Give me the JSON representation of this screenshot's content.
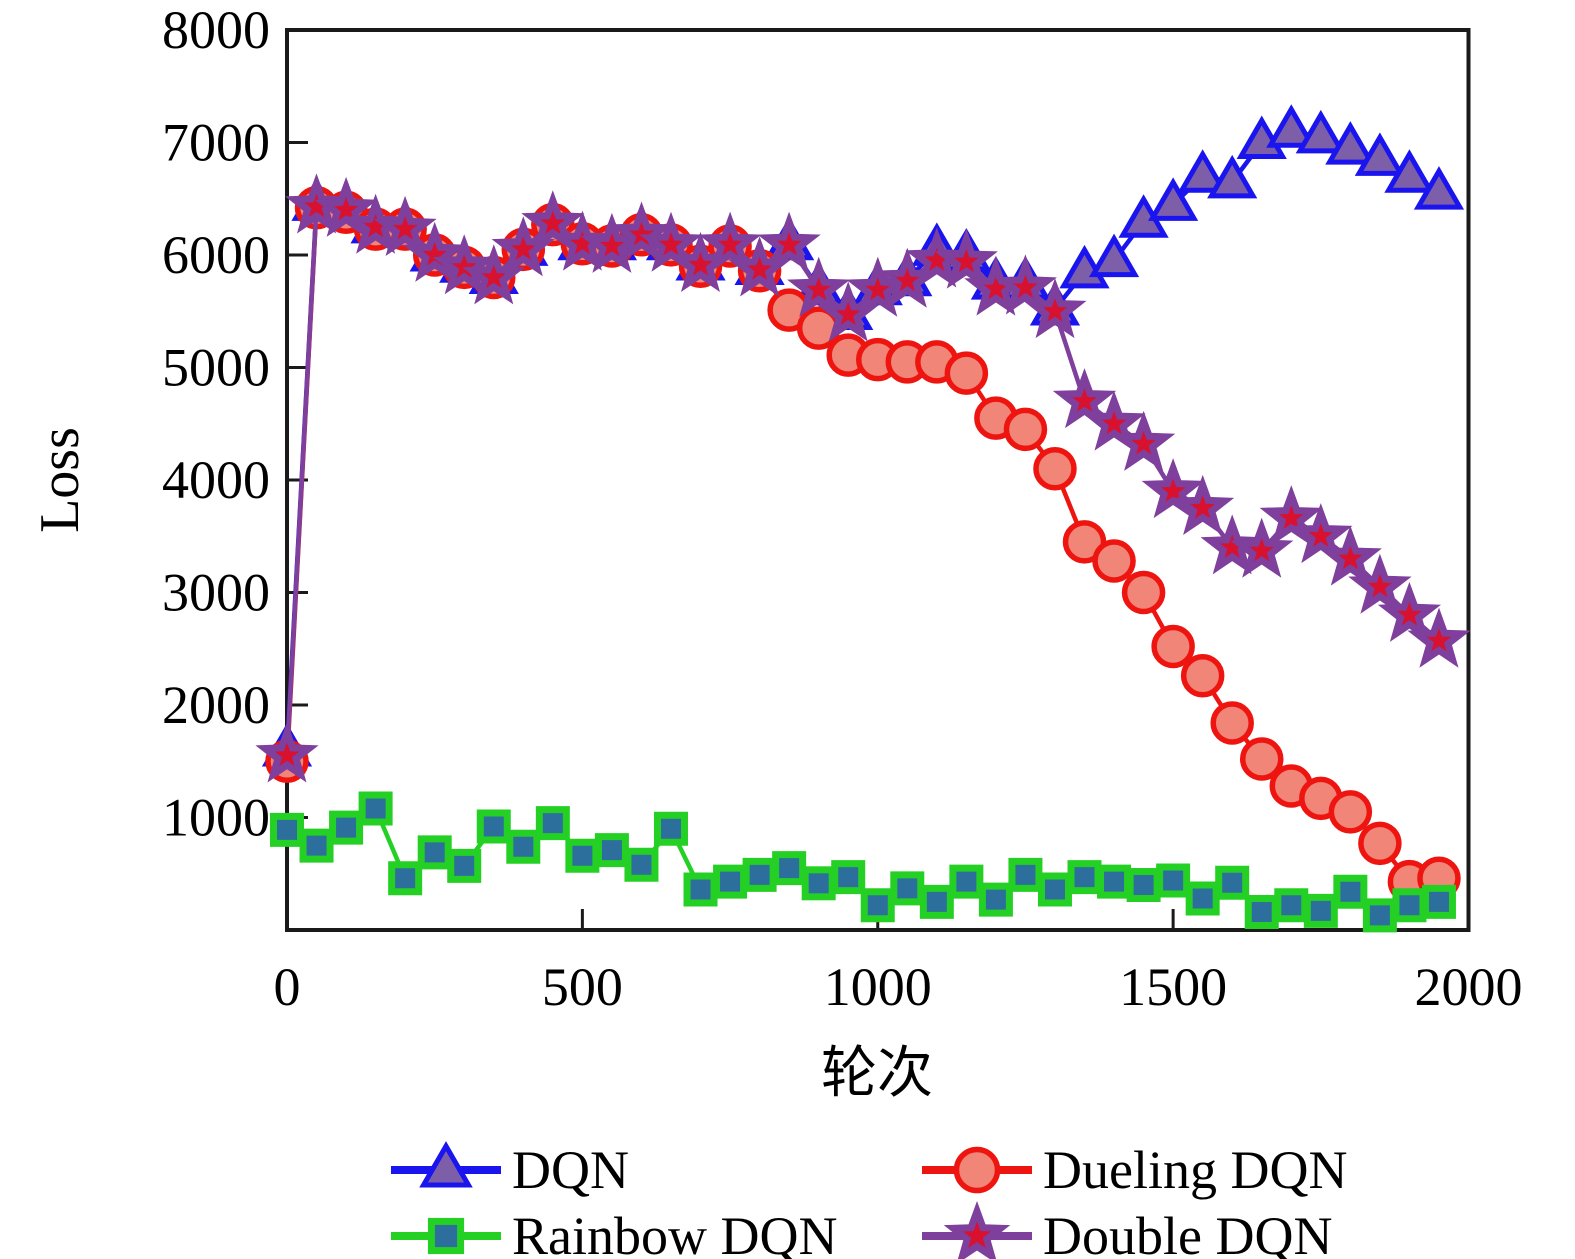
{
  "figure": {
    "ylabel": "Loss",
    "xlabel": "轮次",
    "x_ticks": [
      0,
      500,
      1000,
      1500,
      2000
    ],
    "y_ticks": [
      1000,
      2000,
      3000,
      4000,
      5000,
      6000,
      7000,
      8000
    ],
    "xlim": [
      0,
      2000
    ],
    "ylim": [
      0,
      8000
    ],
    "spine_color": "#1a1a1a",
    "background": "#ffffff"
  },
  "chart_data": {
    "type": "line",
    "title": "",
    "xlabel": "轮次",
    "ylabel": "Loss",
    "xlim": [
      0,
      2000
    ],
    "ylim": [
      0,
      8000
    ],
    "grid": false,
    "legend_position": "below-two-columns",
    "x": [
      0,
      50,
      100,
      150,
      200,
      250,
      300,
      350,
      400,
      450,
      500,
      550,
      600,
      650,
      700,
      750,
      800,
      850,
      900,
      950,
      1000,
      1050,
      1100,
      1150,
      1200,
      1250,
      1300,
      1350,
      1400,
      1450,
      1500,
      1550,
      1600,
      1650,
      1700,
      1750,
      1800,
      1850,
      1900,
      1950
    ],
    "series": [
      {
        "name": "DQN",
        "marker": "triangle",
        "line_color": "#1a15ee",
        "marker_edge": "#1a15ee",
        "marker_fill": "#7c5fa8",
        "values": [
          1600,
          6450,
          6400,
          6250,
          6250,
          6000,
          5900,
          5800,
          6050,
          6280,
          6100,
          6100,
          6200,
          6100,
          5920,
          6100,
          5880,
          6100,
          5700,
          5480,
          5700,
          5780,
          6050,
          6000,
          5750,
          5750,
          5520,
          5850,
          5950,
          6300,
          6450,
          6700,
          6650,
          7000,
          7100,
          7050,
          6950,
          6850,
          6700,
          6550
        ]
      },
      {
        "name": "Dueling DQN",
        "marker": "circle",
        "line_color": "#ee1511",
        "marker_edge": "#ee1511",
        "marker_fill": "#f18577",
        "values": [
          1500,
          6420,
          6380,
          6230,
          6230,
          6000,
          5890,
          5800,
          6050,
          6270,
          6100,
          6080,
          6180,
          6090,
          5900,
          6080,
          5860,
          5510,
          5350,
          5110,
          5070,
          5050,
          5050,
          4950,
          4550,
          4450,
          4100,
          3450,
          3280,
          3000,
          2520,
          2260,
          1840,
          1520,
          1280,
          1170,
          1050,
          770,
          430,
          460
        ]
      },
      {
        "name": "Rainbow DQN",
        "marker": "square",
        "line_color": "#25d025",
        "marker_edge": "#25d025",
        "marker_fill": "#2c6f9c",
        "values": [
          890,
          750,
          910,
          1080,
          460,
          690,
          570,
          920,
          740,
          950,
          660,
          710,
          580,
          900,
          360,
          430,
          490,
          550,
          415,
          470,
          220,
          370,
          250,
          430,
          270,
          490,
          360,
          470,
          430,
          400,
          440,
          280,
          420,
          160,
          220,
          170,
          340,
          130,
          220,
          250
        ]
      },
      {
        "name": "Double DQN",
        "marker": "star",
        "line_color": "#7e3f9d",
        "marker_edge": "#7e3f9d",
        "marker_fill": "#d8112f",
        "values": [
          1550,
          6430,
          6400,
          6250,
          6230,
          6000,
          5890,
          5800,
          6050,
          6280,
          6100,
          6080,
          6180,
          6090,
          5910,
          6090,
          5870,
          6090,
          5690,
          5470,
          5690,
          5770,
          5950,
          5940,
          5700,
          5710,
          5500,
          4700,
          4500,
          4320,
          3900,
          3750,
          3400,
          3370,
          3660,
          3500,
          3300,
          3050,
          2800,
          2570
        ]
      }
    ],
    "legend": {
      "rows": [
        [
          "DQN",
          "Dueling DQN"
        ],
        [
          "Rainbow DQN",
          "Double DQN"
        ]
      ]
    }
  }
}
